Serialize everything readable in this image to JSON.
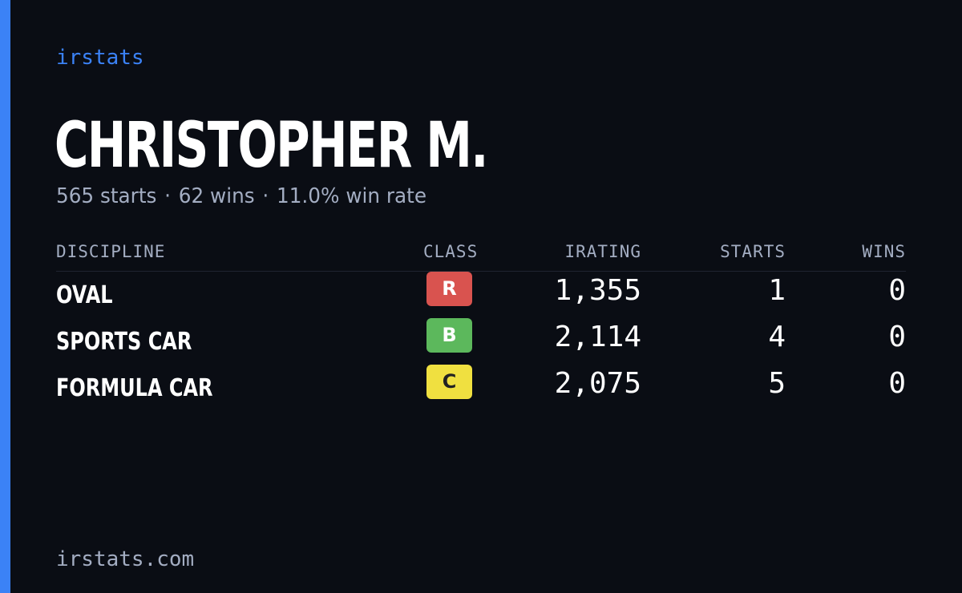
{
  "brand": "irstats",
  "driver": {
    "name": "CHRISTOPHER M.",
    "starts_text": "565 starts",
    "wins_text": "62 wins",
    "win_rate_text": "11.0% win rate",
    "separator": "·"
  },
  "table": {
    "headers": {
      "discipline": "DISCIPLINE",
      "class": "CLASS",
      "irating": "IRATING",
      "starts": "STARTS",
      "wins": "WINS"
    },
    "rows": [
      {
        "discipline": "OVAL",
        "class": "R",
        "class_color": "#d9534f",
        "class_text_color": "#ffffff",
        "irating": "1,355",
        "starts": "1",
        "wins": "0"
      },
      {
        "discipline": "SPORTS CAR",
        "class": "B",
        "class_color": "#5cb85c",
        "class_text_color": "#ffffff",
        "irating": "2,114",
        "starts": "4",
        "wins": "0"
      },
      {
        "discipline": "FORMULA CAR",
        "class": "C",
        "class_color": "#f0e040",
        "class_text_color": "#222222",
        "irating": "2,075",
        "starts": "5",
        "wins": "0"
      }
    ]
  },
  "footer": {
    "url": "irstats.com"
  },
  "colors": {
    "background": "#0a0d14",
    "accent": "#3b82f6",
    "muted_text": "#a3adc2",
    "divider": "#1f2430"
  }
}
